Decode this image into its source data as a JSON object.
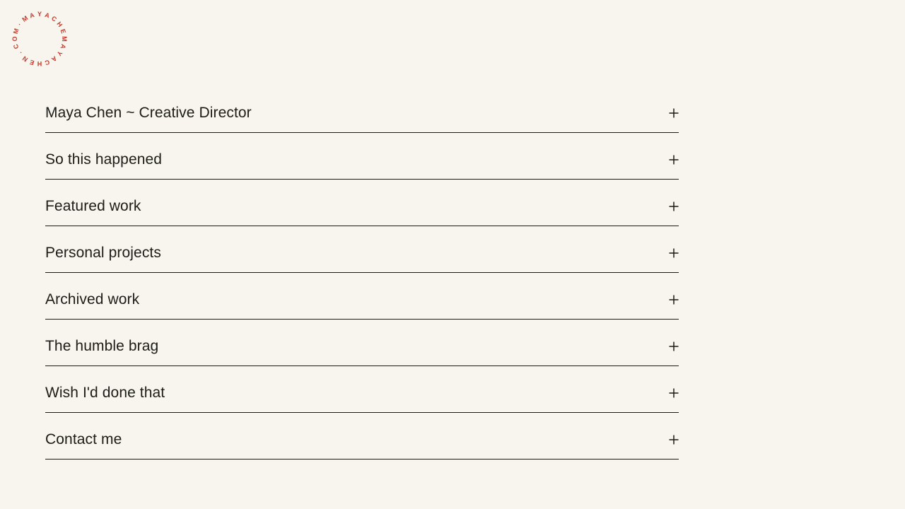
{
  "page": {
    "background_color": "#f7f5ee",
    "text_color": "#1d1c16",
    "divider_color": "#1b1a14"
  },
  "logo": {
    "name": "circular-text-logo",
    "text": "MAYACHEMAYACHEN.COM·",
    "color": "#c33b2b"
  },
  "menu": {
    "expand_symbol": "+",
    "items": [
      {
        "label": "Maya Chen ~ Creative Director"
      },
      {
        "label": "So this happened"
      },
      {
        "label": "Featured work"
      },
      {
        "label": "Personal projects"
      },
      {
        "label": "Archived work"
      },
      {
        "label": "The humble brag"
      },
      {
        "label": "Wish I'd done that"
      },
      {
        "label": "Contact me"
      }
    ]
  }
}
